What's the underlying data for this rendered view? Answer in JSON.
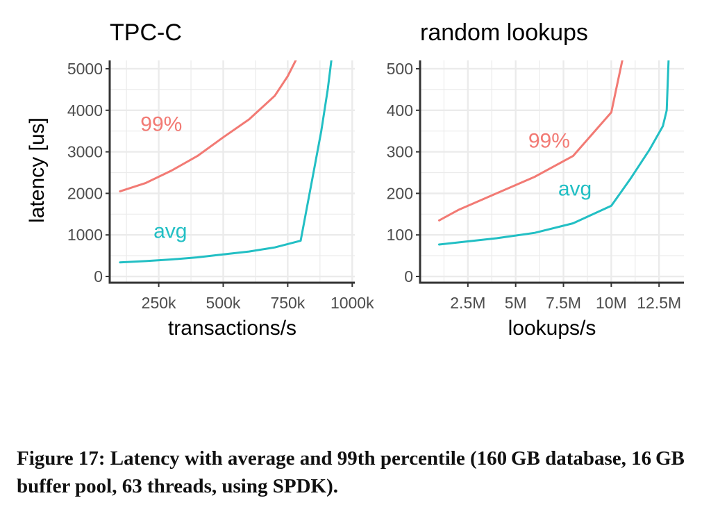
{
  "colors": {
    "p99": "#F27A74",
    "avg": "#22BFC4",
    "grid": "#EBEBEB",
    "axis": "#333333",
    "tick_text": "#4D4D4D"
  },
  "shared": {
    "ylabel": "latency [us]"
  },
  "caption": "Figure 17: Latency with average and 99th percentile (160 GB database, 16 GB buffer pool, 63 threads, using SPDK).",
  "chart_data": [
    {
      "type": "line",
      "title": "TPC-C",
      "xlabel": "transactions/s",
      "ylabel": "latency [us]",
      "xlim": [
        60000,
        1010000
      ],
      "ylim": [
        -150,
        5200
      ],
      "xticks": [
        250000,
        500000,
        750000,
        1000000
      ],
      "xtick_labels": [
        "250k",
        "500k",
        "750k",
        "1000k"
      ],
      "xgrid_minor": [
        125000,
        375000,
        625000,
        875000
      ],
      "yticks": [
        0,
        1000,
        2000,
        3000,
        4000,
        5000
      ],
      "ytick_labels": [
        "0",
        "1000",
        "2000",
        "3000",
        "4000",
        "5000"
      ],
      "ygrid_minor": [
        500,
        1500,
        2500,
        3500,
        4500
      ],
      "grid": true,
      "series": [
        {
          "name": "99%",
          "color_key": "p99",
          "label_at": [
            260000,
            3500
          ],
          "x": [
            100000,
            200000,
            300000,
            400000,
            500000,
            600000,
            700000,
            750000,
            785000
          ],
          "y": [
            2050,
            2250,
            2550,
            2900,
            3350,
            3780,
            4350,
            4820,
            5250
          ]
        },
        {
          "name": "avg",
          "color_key": "avg",
          "label_at": [
            295000,
            930
          ],
          "x": [
            100000,
            200000,
            300000,
            400000,
            500000,
            600000,
            700000,
            800000,
            850000,
            880000,
            905000,
            920000
          ],
          "y": [
            340,
            370,
            410,
            460,
            530,
            600,
            700,
            860,
            2500,
            3500,
            4500,
            5250
          ]
        }
      ]
    },
    {
      "type": "line",
      "title": "random lookups",
      "xlabel": "lookups/s",
      "ylabel": "",
      "xlim": [
        0,
        13800000
      ],
      "ylim": [
        -15,
        520
      ],
      "xticks": [
        2500000,
        5000000,
        7500000,
        10000000,
        12500000
      ],
      "xtick_labels": [
        "2.5M",
        "5M",
        "7.5M",
        "10M",
        "12.5M"
      ],
      "xgrid_minor": [
        1250000,
        3750000,
        6250000,
        8750000,
        11250000
      ],
      "yticks": [
        0,
        100,
        200,
        300,
        400,
        500
      ],
      "ytick_labels": [
        "0",
        "100",
        "200",
        "300",
        "400",
        "500"
      ],
      "ygrid_minor": [
        50,
        150,
        250,
        350,
        450
      ],
      "grid": true,
      "series": [
        {
          "name": "99%",
          "color_key": "p99",
          "label_at": [
            6750000,
            310
          ],
          "x": [
            1000000,
            2000000,
            4000000,
            6000000,
            8000000,
            10000000,
            10300000,
            10600000
          ],
          "y": [
            135,
            160,
            200,
            240,
            290,
            395,
            460,
            525
          ]
        },
        {
          "name": "avg",
          "color_key": "avg",
          "label_at": [
            8100000,
            195
          ],
          "x": [
            1000000,
            2000000,
            4000000,
            6000000,
            8000000,
            10000000,
            11000000,
            12000000,
            12700000,
            12900000,
            13000000
          ],
          "y": [
            77,
            82,
            92,
            105,
            128,
            170,
            235,
            305,
            362,
            400,
            525
          ]
        }
      ]
    }
  ]
}
